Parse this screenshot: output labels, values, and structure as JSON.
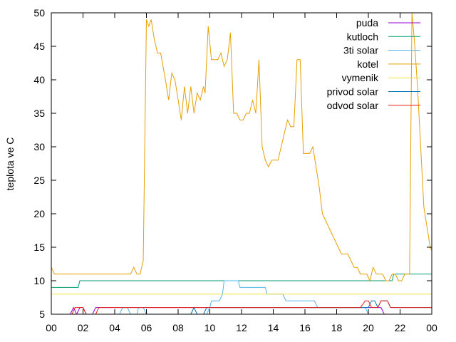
{
  "chart_data": {
    "type": "line",
    "ylabel": "teplota ve C",
    "ylim": [
      5,
      50
    ],
    "xlim": [
      0,
      24
    ],
    "yticks": [
      "5",
      "10",
      "15",
      "20",
      "25",
      "30",
      "35",
      "40",
      "45",
      "50"
    ],
    "xticks": [
      "00",
      "02",
      "04",
      "06",
      "08",
      "10",
      "12",
      "14",
      "16",
      "18",
      "20",
      "22",
      "00"
    ],
    "legend_position": "top-right",
    "grid": false,
    "series": [
      {
        "name": "puda",
        "color": "#9400d3",
        "points": [
          [
            1.2,
            5
          ],
          [
            1.4,
            6
          ],
          [
            1.6,
            5
          ],
          [
            1.8,
            6
          ],
          [
            2.0,
            6
          ],
          [
            2.2,
            5
          ],
          [
            2.6,
            5
          ],
          [
            2.8,
            6
          ],
          [
            18.0,
            6
          ],
          [
            20.8,
            6
          ],
          [
            21.0,
            5
          ],
          [
            24,
            5
          ]
        ]
      },
      {
        "name": "kutloch",
        "color": "#009e73",
        "points": [
          [
            0,
            9
          ],
          [
            1.7,
            9
          ],
          [
            1.8,
            10
          ],
          [
            11.0,
            10
          ],
          [
            21.5,
            10
          ],
          [
            21.6,
            11
          ],
          [
            24,
            11
          ]
        ]
      },
      {
        "name": "3ti solar",
        "color": "#56b4e9",
        "points": [
          [
            4.3,
            5
          ],
          [
            4.5,
            6
          ],
          [
            4.8,
            6
          ],
          [
            5.0,
            5
          ],
          [
            5.4,
            5
          ],
          [
            5.5,
            6
          ],
          [
            5.8,
            6
          ],
          [
            6.0,
            5
          ],
          [
            9.8,
            5
          ],
          [
            10.0,
            6
          ],
          [
            10.1,
            7
          ],
          [
            10.6,
            7
          ],
          [
            10.8,
            8
          ],
          [
            10.9,
            10
          ],
          [
            11.8,
            10
          ],
          [
            11.9,
            9
          ],
          [
            13.5,
            9
          ],
          [
            13.6,
            8
          ],
          [
            14.6,
            8
          ],
          [
            14.8,
            7
          ],
          [
            16.6,
            7
          ],
          [
            16.8,
            6
          ],
          [
            19.8,
            6
          ],
          [
            20.0,
            5
          ],
          [
            24,
            5
          ]
        ]
      },
      {
        "name": "kotel",
        "color": "#e69f00",
        "points": [
          [
            0,
            12
          ],
          [
            0.2,
            11
          ],
          [
            5.0,
            11
          ],
          [
            5.2,
            12
          ],
          [
            5.4,
            11
          ],
          [
            5.6,
            11
          ],
          [
            5.8,
            13
          ],
          [
            6.0,
            49
          ],
          [
            6.15,
            48
          ],
          [
            6.3,
            49
          ],
          [
            6.5,
            46
          ],
          [
            6.7,
            44
          ],
          [
            6.9,
            44
          ],
          [
            7.2,
            40
          ],
          [
            7.4,
            37
          ],
          [
            7.6,
            41
          ],
          [
            7.8,
            40
          ],
          [
            8.0,
            37
          ],
          [
            8.2,
            34
          ],
          [
            8.4,
            39
          ],
          [
            8.6,
            35
          ],
          [
            8.8,
            39
          ],
          [
            9.0,
            35
          ],
          [
            9.2,
            38
          ],
          [
            9.4,
            37
          ],
          [
            9.6,
            39
          ],
          [
            9.7,
            38
          ],
          [
            9.9,
            48
          ],
          [
            10.1,
            43
          ],
          [
            10.3,
            43
          ],
          [
            10.5,
            43
          ],
          [
            10.7,
            44
          ],
          [
            10.9,
            42
          ],
          [
            11.1,
            43
          ],
          [
            11.3,
            47
          ],
          [
            11.5,
            35
          ],
          [
            11.7,
            35
          ],
          [
            11.9,
            34
          ],
          [
            12.1,
            34
          ],
          [
            12.3,
            35
          ],
          [
            12.5,
            35
          ],
          [
            12.7,
            37
          ],
          [
            12.9,
            35
          ],
          [
            13.1,
            43
          ],
          [
            13.3,
            30
          ],
          [
            13.5,
            28
          ],
          [
            13.7,
            27
          ],
          [
            13.9,
            28
          ],
          [
            14.1,
            28
          ],
          [
            14.3,
            28
          ],
          [
            14.5,
            30
          ],
          [
            14.7,
            32
          ],
          [
            14.9,
            34
          ],
          [
            15.1,
            33
          ],
          [
            15.3,
            33
          ],
          [
            15.5,
            43
          ],
          [
            15.7,
            43
          ],
          [
            15.9,
            29
          ],
          [
            16.1,
            29
          ],
          [
            16.3,
            29
          ],
          [
            16.5,
            30
          ],
          [
            16.7,
            27
          ],
          [
            16.9,
            24
          ],
          [
            17.1,
            20
          ],
          [
            17.3,
            19
          ],
          [
            17.5,
            18
          ],
          [
            17.7,
            17
          ],
          [
            17.9,
            16
          ],
          [
            18.1,
            15
          ],
          [
            18.3,
            14
          ],
          [
            18.5,
            14
          ],
          [
            18.7,
            14
          ],
          [
            18.9,
            13
          ],
          [
            19.1,
            12
          ],
          [
            19.3,
            12
          ],
          [
            19.5,
            11
          ],
          [
            19.7,
            11
          ],
          [
            19.9,
            11
          ],
          [
            20.1,
            10
          ],
          [
            20.3,
            12
          ],
          [
            20.5,
            11
          ],
          [
            20.7,
            11
          ],
          [
            20.9,
            11
          ],
          [
            21.1,
            10
          ],
          [
            21.3,
            10
          ],
          [
            21.5,
            11
          ],
          [
            21.7,
            11
          ],
          [
            21.9,
            10
          ],
          [
            22.1,
            10
          ],
          [
            22.3,
            11
          ],
          [
            22.6,
            11
          ],
          [
            22.75,
            50
          ],
          [
            22.9,
            46
          ],
          [
            23.1,
            39
          ],
          [
            23.3,
            30
          ],
          [
            23.5,
            21
          ],
          [
            23.7,
            18
          ],
          [
            23.9,
            15
          ],
          [
            24.1,
            14
          ],
          [
            24.3,
            13
          ],
          [
            24.5,
            13
          ]
        ]
      },
      {
        "name": "vymenik",
        "color": "#f0e442",
        "points": [
          [
            0,
            8
          ],
          [
            24,
            8
          ]
        ]
      },
      {
        "name": "privod solar",
        "color": "#0072b2",
        "points": [
          [
            8.8,
            5
          ],
          [
            9.0,
            6
          ],
          [
            9.2,
            5
          ],
          [
            9.6,
            5
          ],
          [
            9.8,
            6
          ],
          [
            10.0,
            6
          ],
          [
            10.2,
            6
          ],
          [
            20.0,
            6
          ],
          [
            20.2,
            7
          ],
          [
            20.4,
            7
          ],
          [
            20.6,
            6
          ],
          [
            20.8,
            7
          ],
          [
            21.2,
            7
          ],
          [
            21.4,
            6
          ],
          [
            24,
            6
          ]
        ]
      },
      {
        "name": "odvod solar",
        "color": "#e51e10",
        "points": [
          [
            1.3,
            5
          ],
          [
            1.5,
            6
          ],
          [
            2.0,
            6
          ],
          [
            2.2,
            5
          ],
          [
            2.8,
            5
          ],
          [
            3.0,
            6
          ],
          [
            10.2,
            6
          ],
          [
            11.0,
            6
          ],
          [
            18.0,
            6
          ],
          [
            19.5,
            6
          ],
          [
            19.8,
            7
          ],
          [
            20.0,
            7
          ],
          [
            20.2,
            6
          ],
          [
            20.6,
            6
          ],
          [
            20.8,
            7
          ],
          [
            21.2,
            7
          ],
          [
            21.4,
            6
          ],
          [
            24,
            6
          ]
        ]
      }
    ]
  }
}
